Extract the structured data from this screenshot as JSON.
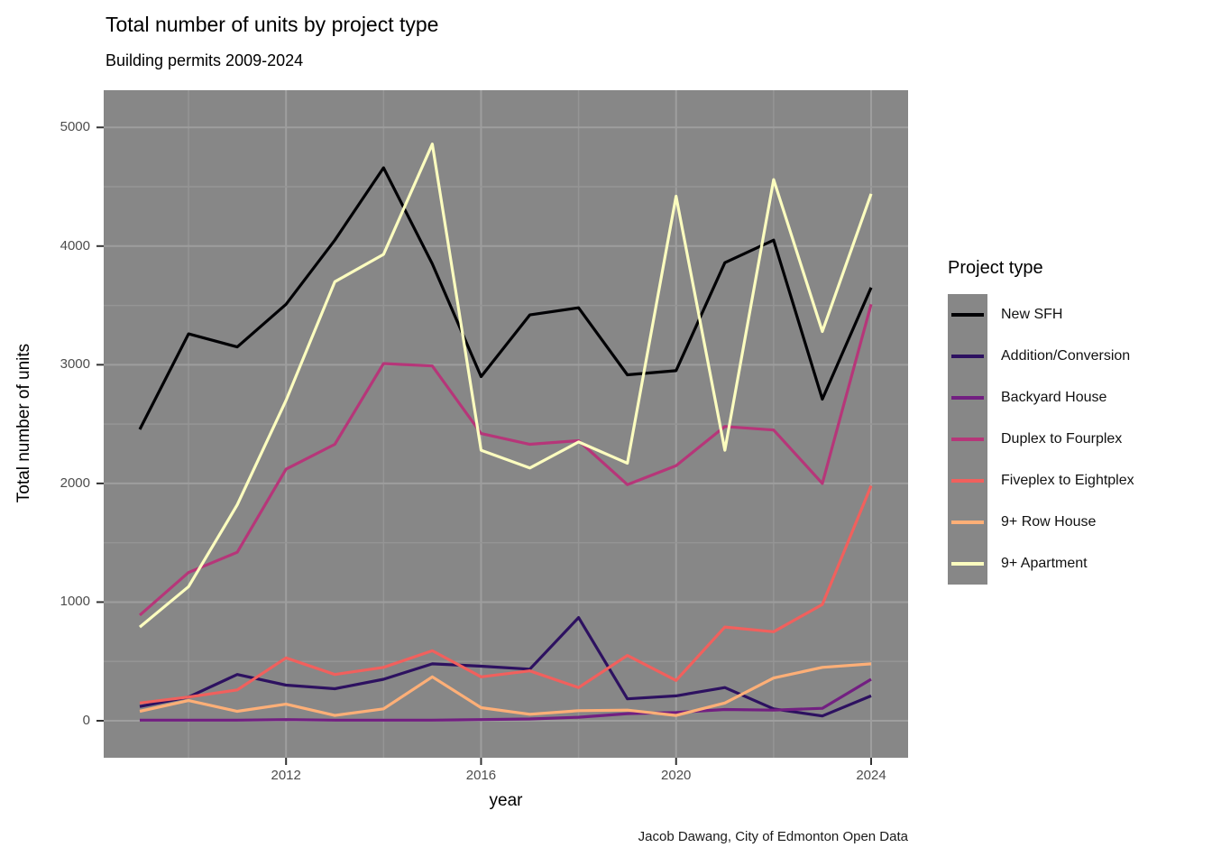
{
  "header": {
    "title": "Total number of units by project type",
    "subtitle": "Building permits 2009-2024"
  },
  "caption": "Jacob Dawang, City of Edmonton Open Data",
  "legend": {
    "title": "Project type"
  },
  "axes": {
    "x": {
      "title": "year",
      "tick_labels": [
        "2012",
        "2016",
        "2020",
        "2024"
      ],
      "tick_years": [
        2012,
        2016,
        2020,
        2024
      ]
    },
    "y": {
      "title": "Total number of units",
      "tick_labels": [
        "0",
        "1000",
        "2000",
        "3000",
        "4000",
        "5000"
      ],
      "tick_values": [
        0,
        1000,
        2000,
        3000,
        4000,
        5000
      ]
    }
  },
  "style": {
    "panel_bg": "#878787",
    "grid_major": "#9e9e9e",
    "grid_minor": "#959595",
    "tick_mark_color": "#333333",
    "tick_label_color": "#4d4d4d",
    "text_color": "#000000"
  },
  "chart_data": {
    "type": "line",
    "title": "Total number of units by project type",
    "subtitle": "Building permits 2009-2024",
    "xlabel": "year",
    "ylabel": "Total number of units",
    "grid": "on",
    "legend_position": "right",
    "legend_title": "Project type",
    "x": [
      2009,
      2010,
      2011,
      2012,
      2013,
      2014,
      2015,
      2016,
      2017,
      2018,
      2019,
      2020,
      2021,
      2022,
      2023,
      2024
    ],
    "xlim": [
      2008.25,
      2024.75
    ],
    "ylim": [
      0,
      5000
    ],
    "series": [
      {
        "name": "New SFH",
        "color": "#000004",
        "values": [
          2455,
          3260,
          3150,
          3510,
          4050,
          4660,
          3850,
          2900,
          3420,
          3480,
          2915,
          2950,
          3860,
          4050,
          2710,
          3650
        ]
      },
      {
        "name": "Addition/Conversion",
        "color": "#2D1160",
        "values": [
          120,
          200,
          390,
          300,
          270,
          350,
          480,
          460,
          435,
          870,
          185,
          210,
          280,
          100,
          40,
          210
        ]
      },
      {
        "name": "Backyard House",
        "color": "#721F81",
        "values": [
          5,
          5,
          5,
          10,
          5,
          5,
          5,
          10,
          15,
          30,
          60,
          70,
          95,
          90,
          105,
          350
        ]
      },
      {
        "name": "Duplex to Fourplex",
        "color": "#B63679",
        "values": [
          890,
          1250,
          1420,
          2120,
          2330,
          3010,
          2990,
          2420,
          2330,
          2360,
          1990,
          2150,
          2480,
          2450,
          2000,
          3510
        ]
      },
      {
        "name": "Fiveplex to Eightplex",
        "color": "#F1605D",
        "values": [
          150,
          200,
          260,
          530,
          390,
          450,
          590,
          370,
          420,
          280,
          550,
          340,
          790,
          750,
          980,
          1980
        ]
      },
      {
        "name": "9+ Row House",
        "color": "#FEAF77",
        "values": [
          80,
          170,
          80,
          140,
          45,
          100,
          370,
          110,
          55,
          85,
          90,
          45,
          150,
          360,
          450,
          480
        ]
      },
      {
        "name": "9+ Apartment",
        "color": "#FCFDBF",
        "values": [
          790,
          1130,
          1820,
          2700,
          3700,
          3930,
          4860,
          2280,
          2130,
          2350,
          2170,
          4420,
          2280,
          4560,
          3280,
          4440
        ]
      }
    ]
  }
}
